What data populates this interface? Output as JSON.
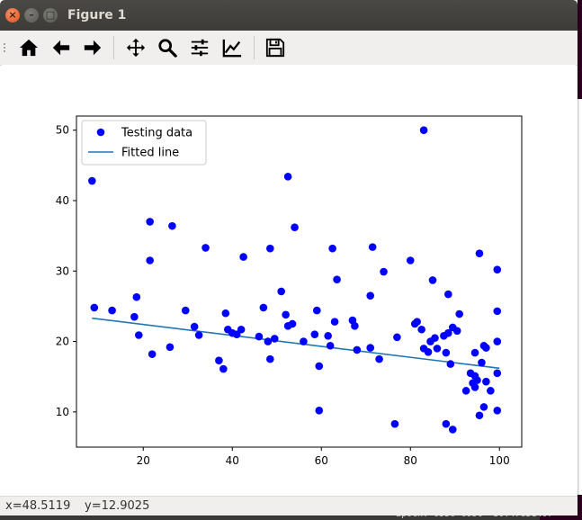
{
  "window": {
    "title": "Figure 1",
    "close_glyph": "×",
    "minimize_glyph": "–",
    "maximize_glyph": "□"
  },
  "toolbar": {
    "buttons": [
      {
        "name": "home-button",
        "icon": "home-icon"
      },
      {
        "name": "back-button",
        "icon": "arrow-left-icon"
      },
      {
        "name": "forward-button",
        "icon": "arrow-right-icon"
      },
      {
        "name": "pan-button",
        "icon": "move-icon"
      },
      {
        "name": "zoom-button",
        "icon": "magnifier-icon"
      },
      {
        "name": "subplots-button",
        "icon": "sliders-icon"
      },
      {
        "name": "edit-axes-button",
        "icon": "line-chart-icon"
      },
      {
        "name": "save-button",
        "icon": "floppy-disk-icon"
      }
    ]
  },
  "status": {
    "x": "x=48.5119",
    "y": "y=12.9025"
  },
  "background": {
    "terminal_text": "Epoch: 0550 cost= 30.47651407"
  },
  "colors": {
    "points": "#0000ff",
    "line": "#1f77b4"
  },
  "chart_data": {
    "type": "scatter",
    "xlim": [
      5,
      105
    ],
    "ylim": [
      5,
      52
    ],
    "x_ticks": [
      20,
      40,
      60,
      80,
      100
    ],
    "y_ticks": [
      10,
      20,
      30,
      40,
      50
    ],
    "grid": false,
    "legend_position": "top-left",
    "legend": [
      "Testing data",
      "Fitted line"
    ],
    "series": [
      {
        "name": "Testing data",
        "kind": "scatter",
        "points": [
          [
            8.5,
            42.8
          ],
          [
            9,
            24.8
          ],
          [
            13,
            24.4
          ],
          [
            18,
            23.5
          ],
          [
            18.5,
            26.3
          ],
          [
            19,
            20.9
          ],
          [
            21.5,
            37
          ],
          [
            21.5,
            31.5
          ],
          [
            22,
            18.2
          ],
          [
            26,
            19.2
          ],
          [
            26.5,
            36.4
          ],
          [
            29.5,
            24.4
          ],
          [
            31.5,
            22.1
          ],
          [
            32.5,
            20.9
          ],
          [
            34,
            33.3
          ],
          [
            37,
            17.3
          ],
          [
            38,
            16.1
          ],
          [
            38.5,
            24
          ],
          [
            39,
            21.7
          ],
          [
            40,
            21.2
          ],
          [
            41,
            21
          ],
          [
            42,
            21.7
          ],
          [
            42.5,
            32
          ],
          [
            46,
            20.7
          ],
          [
            47,
            24.8
          ],
          [
            48,
            20
          ],
          [
            48.5,
            17.5
          ],
          [
            48.5,
            33.2
          ],
          [
            49.5,
            20.4
          ],
          [
            51,
            27.1
          ],
          [
            52,
            23.8
          ],
          [
            52.5,
            43.4
          ],
          [
            52.5,
            22.2
          ],
          [
            53.5,
            22.5
          ],
          [
            54,
            36.2
          ],
          [
            56,
            20
          ],
          [
            58.5,
            21
          ],
          [
            59,
            24.4
          ],
          [
            59.5,
            16.5
          ],
          [
            59.5,
            10.2
          ],
          [
            61.5,
            20.8
          ],
          [
            62,
            19.4
          ],
          [
            62.5,
            33.2
          ],
          [
            63,
            22.8
          ],
          [
            63.5,
            28.8
          ],
          [
            67,
            23
          ],
          [
            67.5,
            22.2
          ],
          [
            68,
            18.8
          ],
          [
            71,
            26.5
          ],
          [
            71,
            19.1
          ],
          [
            71.5,
            33.4
          ],
          [
            73,
            17.5
          ],
          [
            74,
            29.9
          ],
          [
            76.5,
            8.3
          ],
          [
            77,
            20.6
          ],
          [
            80,
            31.5
          ],
          [
            81,
            22.5
          ],
          [
            81.5,
            22.8
          ],
          [
            82.5,
            21.7
          ],
          [
            83,
            50
          ],
          [
            83,
            19
          ],
          [
            84,
            18.5
          ],
          [
            84.5,
            20
          ],
          [
            85,
            28.7
          ],
          [
            85.5,
            20.5
          ],
          [
            86,
            19
          ],
          [
            87.5,
            20.8
          ],
          [
            88,
            8.3
          ],
          [
            88,
            18.4
          ],
          [
            88.5,
            26.7
          ],
          [
            88.5,
            21.2
          ],
          [
            89,
            16.8
          ],
          [
            89.5,
            22
          ],
          [
            89.5,
            7.5
          ],
          [
            90.5,
            21.5
          ],
          [
            91,
            23.9
          ],
          [
            92.5,
            13
          ],
          [
            93.5,
            15.5
          ],
          [
            94,
            14.1
          ],
          [
            94.5,
            13.5
          ],
          [
            94.5,
            15.1
          ],
          [
            94.5,
            18.4
          ],
          [
            95,
            14.5
          ],
          [
            95.5,
            9.5
          ],
          [
            95.5,
            32.5
          ],
          [
            96,
            17
          ],
          [
            96.5,
            19.4
          ],
          [
            96.5,
            10.7
          ],
          [
            97,
            14.3
          ],
          [
            97,
            19.1
          ],
          [
            98,
            13
          ],
          [
            99.5,
            30.2
          ],
          [
            99.5,
            24.3
          ],
          [
            99.5,
            20
          ],
          [
            99.5,
            15.5
          ],
          [
            99.5,
            10.2
          ]
        ]
      },
      {
        "name": "Fitted line",
        "kind": "line",
        "points": [
          [
            8.5,
            23.3
          ],
          [
            100,
            16.2
          ]
        ]
      }
    ]
  }
}
